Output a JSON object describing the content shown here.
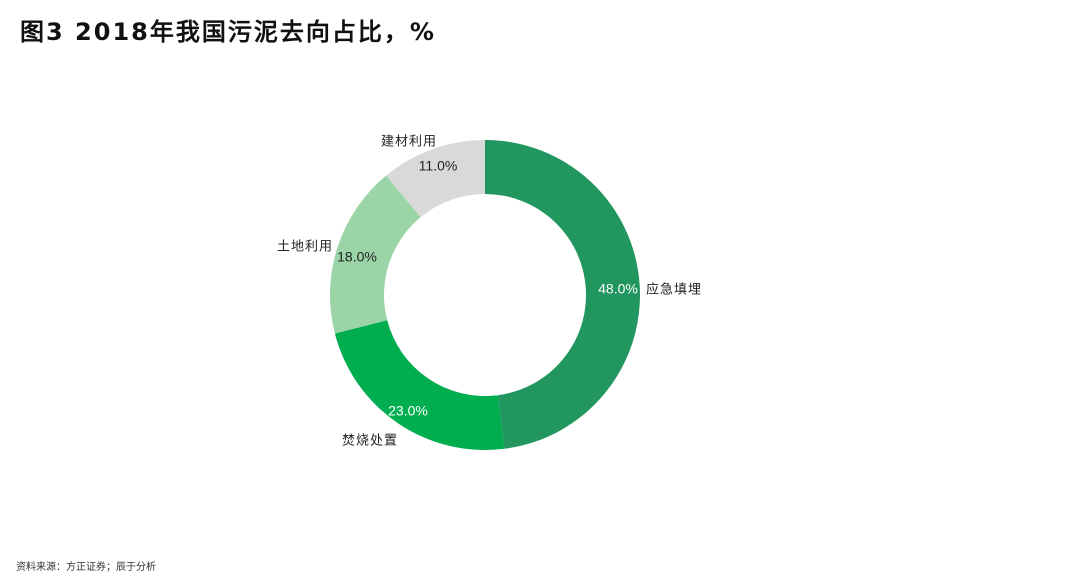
{
  "title": "图3   2018年我国污泥去向占比，%",
  "source": "资料来源：方正证券；辰于分析",
  "chart_data": {
    "type": "pie",
    "donut": true,
    "title": "图3   2018年我国污泥去向占比，%",
    "start": "top, clockwise",
    "legend": "none (data labels)",
    "slices": [
      {
        "label": "应急填埋",
        "value": 48.0,
        "value_label": "48.0%",
        "color": "#21965E",
        "label_color": "#ffffff"
      },
      {
        "label": "焚烧处置",
        "value": 23.0,
        "value_label": "23.0%",
        "color": "#00AE4F",
        "label_color": "#ffffff"
      },
      {
        "label": "土地利用",
        "value": 18.0,
        "value_label": "18.0%",
        "color": "#9AD4A7",
        "label_color": "#222222"
      },
      {
        "label": "建材利用",
        "value": 11.0,
        "value_label": "11.0%",
        "color": "#D9D9D9",
        "label_color": "#222222"
      }
    ]
  }
}
